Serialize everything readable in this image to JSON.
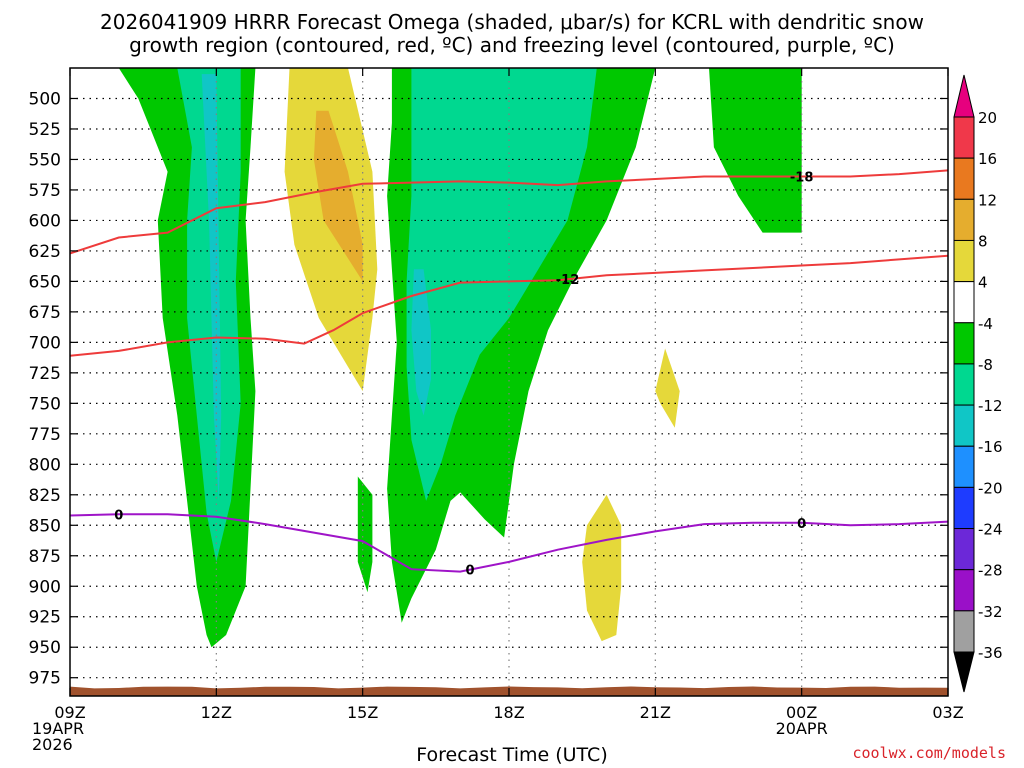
{
  "title_line1": "2026041909 HRRR Forecast Omega (shaded, μbar/s) for KCRL with dendritic snow",
  "title_line2": "growth region (contoured, red, ºC) and freezing level (contoured, purple, ºC)",
  "x_axis_label": "Forecast Time (UTC)",
  "credit": "coolwx.com/models",
  "chart_data": {
    "type": "time-height cross section",
    "x_ticks": [
      {
        "hour": 0,
        "lines": [
          "09Z",
          "19APR",
          "2026"
        ]
      },
      {
        "hour": 3,
        "lines": [
          "12Z"
        ]
      },
      {
        "hour": 6,
        "lines": [
          "15Z"
        ]
      },
      {
        "hour": 9,
        "lines": [
          "18Z"
        ]
      },
      {
        "hour": 12,
        "lines": [
          "21Z"
        ]
      },
      {
        "hour": 15,
        "lines": [
          "00Z",
          "20APR"
        ]
      },
      {
        "hour": 18,
        "lines": [
          "03Z"
        ]
      }
    ],
    "y_ticks": [
      500,
      525,
      550,
      575,
      600,
      625,
      650,
      675,
      700,
      725,
      750,
      775,
      800,
      825,
      850,
      875,
      900,
      925,
      950,
      975
    ],
    "x_range_hours": [
      0,
      18
    ],
    "y_range_hpa": [
      475,
      990
    ],
    "colorbar": {
      "labels": [
        "20",
        "16",
        "12",
        "8",
        "4",
        "-4",
        "-8",
        "-12",
        "-16",
        "-20",
        "-24",
        "-28",
        "-32",
        "-36"
      ],
      "bins": [
        {
          "range": [
            16,
            20
          ],
          "color": "#f0384a"
        },
        {
          "range": [
            12,
            16
          ],
          "color": "#e9791f"
        },
        {
          "range": [
            8,
            12
          ],
          "color": "#e5ad2e"
        },
        {
          "range": [
            4,
            8
          ],
          "color": "#e5d83a"
        },
        {
          "range": [
            -4,
            4
          ],
          "color": "#ffffff"
        },
        {
          "range": [
            -8,
            -4
          ],
          "color": "#00c800"
        },
        {
          "range": [
            -12,
            -8
          ],
          "color": "#00d890"
        },
        {
          "range": [
            -16,
            -12
          ],
          "color": "#10c6c6"
        },
        {
          "range": [
            -20,
            -16
          ],
          "color": "#1e90ff"
        },
        {
          "range": [
            -24,
            -20
          ],
          "color": "#1e3cff"
        },
        {
          "range": [
            -28,
            -24
          ],
          "color": "#6c28d8"
        },
        {
          "range": [
            -32,
            -28
          ],
          "color": "#9a10c8"
        },
        {
          "range": [
            -36,
            -32
          ],
          "color": "#a0a0a0"
        }
      ],
      "over_color": "#e6007e",
      "under_color": "#000000"
    },
    "contours": [
      {
        "name": "-18C isotherm",
        "label": "-18",
        "color": "#ee3b3b",
        "points": [
          [
            0,
            627
          ],
          [
            1,
            614
          ],
          [
            2,
            610
          ],
          [
            3,
            590
          ],
          [
            4,
            585
          ],
          [
            5,
            577
          ],
          [
            6,
            570
          ],
          [
            7,
            569
          ],
          [
            8,
            568
          ],
          [
            9,
            569
          ],
          [
            10,
            571
          ],
          [
            11,
            568
          ],
          [
            12,
            566
          ],
          [
            13,
            564
          ],
          [
            14,
            564
          ],
          [
            15,
            564
          ],
          [
            16,
            564
          ],
          [
            17,
            562
          ],
          [
            18,
            559
          ]
        ]
      },
      {
        "name": "-12C isotherm",
        "label": "-12",
        "color": "#ee3b3b",
        "points": [
          [
            0,
            711
          ],
          [
            1,
            707
          ],
          [
            2,
            700
          ],
          [
            3,
            696
          ],
          [
            4,
            697
          ],
          [
            4.8,
            701
          ],
          [
            5.4,
            690
          ],
          [
            6,
            676
          ],
          [
            7,
            662
          ],
          [
            8,
            651
          ],
          [
            9,
            650
          ],
          [
            10,
            649
          ],
          [
            11,
            645
          ],
          [
            12,
            643
          ],
          [
            13,
            641
          ],
          [
            14,
            639
          ],
          [
            15,
            637
          ],
          [
            16,
            635
          ],
          [
            17,
            632
          ],
          [
            18,
            629
          ]
        ]
      },
      {
        "name": "0C freezing level",
        "label": "0",
        "color": "#9f14c8",
        "points": [
          [
            0,
            842
          ],
          [
            1,
            841
          ],
          [
            2,
            841
          ],
          [
            3,
            843
          ],
          [
            4,
            849
          ],
          [
            5,
            856
          ],
          [
            6,
            863
          ],
          [
            7,
            886
          ],
          [
            8,
            888
          ],
          [
            9,
            880
          ],
          [
            10,
            870
          ],
          [
            11,
            862
          ],
          [
            12,
            855
          ],
          [
            13,
            849
          ],
          [
            14,
            848
          ],
          [
            15,
            848
          ],
          [
            16,
            850
          ],
          [
            17,
            849
          ],
          [
            18,
            847
          ]
        ]
      }
    ],
    "shaded_regions": [
      {
        "name": "green band 1",
        "color": "#00c800",
        "points": [
          [
            1,
            475
          ],
          [
            3.8,
            475
          ],
          [
            3.7,
            540
          ],
          [
            3.6,
            600
          ],
          [
            3.7,
            680
          ],
          [
            3.8,
            740
          ],
          [
            3.7,
            820
          ],
          [
            3.6,
            900
          ],
          [
            3.2,
            940
          ],
          [
            2.9,
            950
          ],
          [
            2.8,
            940
          ],
          [
            2.6,
            900
          ],
          [
            2.4,
            830
          ],
          [
            2.2,
            760
          ],
          [
            1.9,
            680
          ],
          [
            1.8,
            600
          ],
          [
            2.0,
            560
          ],
          [
            1.4,
            500
          ]
        ]
      },
      {
        "name": "teal core 1",
        "color": "#00d890",
        "points": [
          [
            2.2,
            475
          ],
          [
            3.5,
            475
          ],
          [
            3.5,
            560
          ],
          [
            3.4,
            650
          ],
          [
            3.5,
            750
          ],
          [
            3.3,
            830
          ],
          [
            3.0,
            880
          ],
          [
            2.8,
            840
          ],
          [
            2.6,
            760
          ],
          [
            2.4,
            680
          ],
          [
            2.4,
            600
          ],
          [
            2.5,
            540
          ]
        ]
      },
      {
        "name": "cyan sliver 1",
        "color": "#10c6c6",
        "points": [
          [
            2.7,
            480
          ],
          [
            3.0,
            480
          ],
          [
            3.05,
            620
          ],
          [
            3.1,
            760
          ],
          [
            3.05,
            830
          ],
          [
            2.95,
            760
          ],
          [
            2.85,
            600
          ]
        ]
      },
      {
        "name": "yellow upper",
        "color": "#e5d83a",
        "points": [
          [
            4.5,
            475
          ],
          [
            5.7,
            475
          ],
          [
            6.2,
            560
          ],
          [
            6.3,
            640
          ],
          [
            6.2,
            680
          ],
          [
            6.0,
            740
          ],
          [
            5.7,
            720
          ],
          [
            5.1,
            680
          ],
          [
            4.6,
            620
          ],
          [
            4.4,
            560
          ]
        ]
      },
      {
        "name": "orange core",
        "color": "#e5ad2e",
        "points": [
          [
            5.05,
            510
          ],
          [
            5.3,
            510
          ],
          [
            5.7,
            560
          ],
          [
            6.0,
            620
          ],
          [
            6.0,
            650
          ],
          [
            5.6,
            625
          ],
          [
            5.2,
            600
          ],
          [
            5.0,
            550
          ]
        ]
      },
      {
        "name": "green band 2",
        "color": "#00c800",
        "points": [
          [
            6.6,
            475
          ],
          [
            12.0,
            475
          ],
          [
            11.6,
            540
          ],
          [
            11.0,
            600
          ],
          [
            10.3,
            650
          ],
          [
            9.8,
            690
          ],
          [
            9.4,
            740
          ],
          [
            9.1,
            800
          ],
          [
            8.9,
            860
          ],
          [
            8.5,
            845
          ],
          [
            8.0,
            823
          ],
          [
            7.8,
            830
          ],
          [
            7.5,
            870
          ],
          [
            7.0,
            910
          ],
          [
            6.8,
            930
          ],
          [
            6.6,
            880
          ],
          [
            6.5,
            820
          ],
          [
            6.6,
            760
          ],
          [
            6.7,
            700
          ],
          [
            6.6,
            640
          ],
          [
            6.5,
            580
          ],
          [
            6.6,
            520
          ]
        ]
      },
      {
        "name": "teal core 2",
        "color": "#00d890",
        "points": [
          [
            7.0,
            475
          ],
          [
            10.8,
            475
          ],
          [
            10.6,
            540
          ],
          [
            10.2,
            600
          ],
          [
            9.6,
            640
          ],
          [
            9.0,
            680
          ],
          [
            8.4,
            710
          ],
          [
            7.9,
            760
          ],
          [
            7.6,
            800
          ],
          [
            7.3,
            830
          ],
          [
            7.0,
            780
          ],
          [
            6.9,
            720
          ],
          [
            6.9,
            650
          ],
          [
            7.0,
            580
          ]
        ]
      },
      {
        "name": "cyan sliver 2",
        "color": "#10c6c6",
        "points": [
          [
            7.05,
            640
          ],
          [
            7.25,
            640
          ],
          [
            7.4,
            690
          ],
          [
            7.4,
            730
          ],
          [
            7.25,
            760
          ],
          [
            7.1,
            740
          ],
          [
            7.0,
            690
          ]
        ]
      },
      {
        "name": "green band 3",
        "color": "#00c800",
        "points": [
          [
            13.1,
            475
          ],
          [
            15.0,
            475
          ],
          [
            15.0,
            610
          ],
          [
            14.2,
            610
          ],
          [
            13.7,
            580
          ],
          [
            13.2,
            540
          ]
        ]
      },
      {
        "name": "green blob small",
        "color": "#00c800",
        "points": [
          [
            5.9,
            810
          ],
          [
            6.2,
            825
          ],
          [
            6.2,
            880
          ],
          [
            6.1,
            905
          ],
          [
            5.9,
            880
          ],
          [
            5.9,
            830
          ]
        ]
      },
      {
        "name": "yellow lower",
        "color": "#e5d83a",
        "points": [
          [
            11.0,
            825
          ],
          [
            11.3,
            850
          ],
          [
            11.3,
            900
          ],
          [
            11.2,
            940
          ],
          [
            10.9,
            945
          ],
          [
            10.6,
            920
          ],
          [
            10.5,
            880
          ],
          [
            10.6,
            850
          ]
        ]
      },
      {
        "name": "yellow upper right",
        "color": "#e5d83a",
        "points": [
          [
            12.2,
            705
          ],
          [
            12.5,
            740
          ],
          [
            12.4,
            770
          ],
          [
            12.1,
            750
          ],
          [
            12.0,
            740
          ]
        ]
      }
    ],
    "terrain_color": "#a0522d"
  }
}
